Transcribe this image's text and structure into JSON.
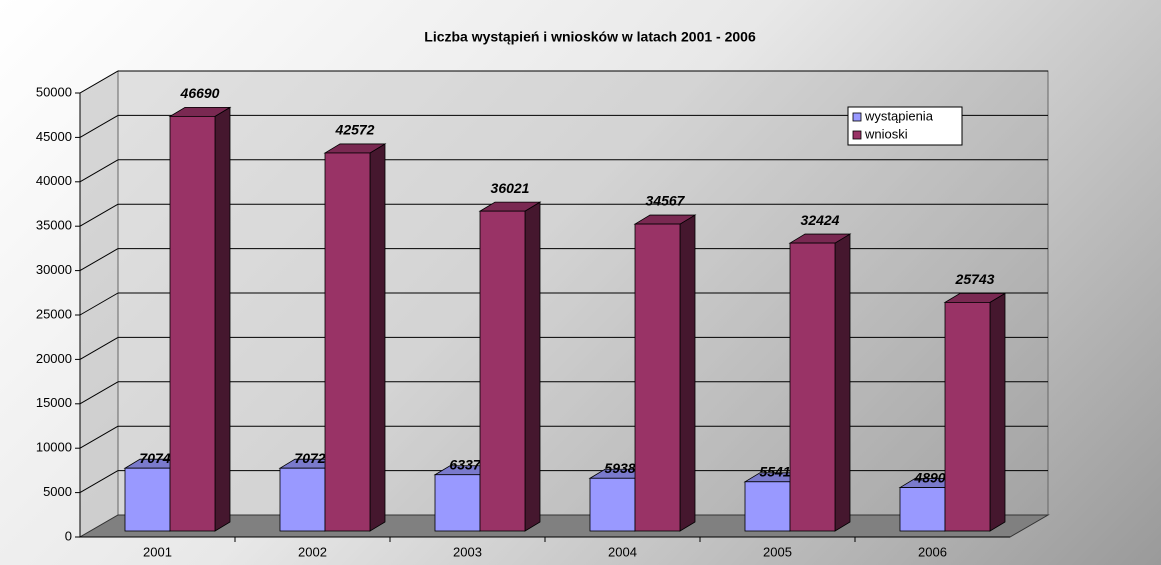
{
  "chart_data": {
    "type": "bar3d",
    "title": "Liczba wystąpień i wniosków w latach 2001 - 2006",
    "categories": [
      "2001",
      "2002",
      "2003",
      "2004",
      "2005",
      "2006"
    ],
    "series": [
      {
        "name": "wystąpienia",
        "color": "#9999ff",
        "values": [
          7074,
          7072,
          6337,
          5938,
          5541,
          4890
        ]
      },
      {
        "name": "wnioski",
        "color": "#993366",
        "values": [
          46690,
          42572,
          36021,
          34567,
          32424,
          25743
        ]
      }
    ],
    "ylim": [
      0,
      50000
    ],
    "yticks": [
      0,
      5000,
      10000,
      15000,
      20000,
      25000,
      30000,
      35000,
      40000,
      45000,
      50000
    ],
    "grid": true,
    "legend": "upper right"
  }
}
